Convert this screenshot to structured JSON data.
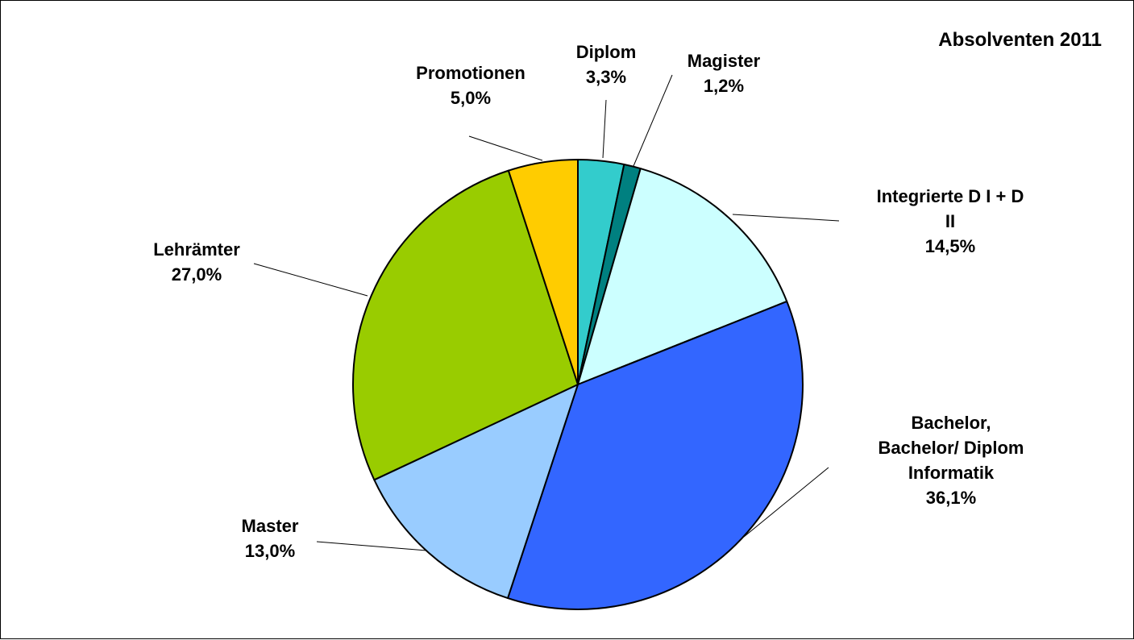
{
  "chart_data": {
    "type": "pie",
    "title": "Absolventen 2011",
    "slices": [
      {
        "label_lines": [
          "Diplom",
          "3,3%"
        ],
        "value": 3.3,
        "color": "#33cccc"
      },
      {
        "label_lines": [
          "Magister",
          "1,2%"
        ],
        "value": 1.2,
        "color": "#008080"
      },
      {
        "label_lines": [
          "Integrierte D I + D",
          "II",
          "14,5%"
        ],
        "value": 14.5,
        "color": "#ccffff"
      },
      {
        "label_lines": [
          "Bachelor,",
          "Bachelor/ Diplom",
          "Informatik",
          "36,1%"
        ],
        "value": 36.1,
        "color": "#3366ff"
      },
      {
        "label_lines": [
          "Master",
          "13,0%"
        ],
        "value": 13.0,
        "color": "#99ccff"
      },
      {
        "label_lines": [
          "Lehrämter",
          "27,0%"
        ],
        "value": 27.0,
        "color": "#99cc00"
      },
      {
        "label_lines": [
          "Promotionen",
          "5,0%"
        ],
        "value": 5.0,
        "color": "#ffcc00"
      }
    ]
  }
}
